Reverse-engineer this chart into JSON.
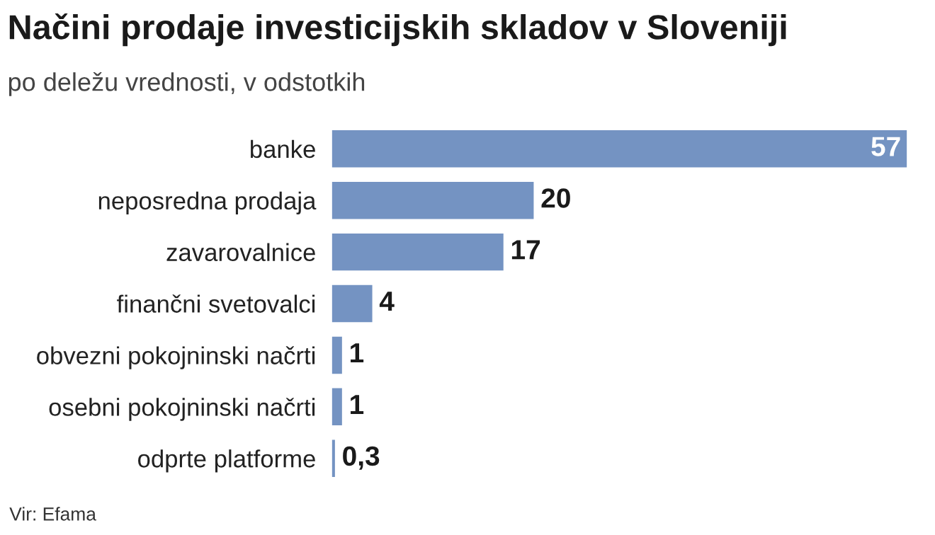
{
  "chart_data": {
    "type": "bar",
    "orientation": "horizontal",
    "title": "Načini prodaje investicijskih skladov v Sloveniji",
    "subtitle": "po deležu vrednosti, v odstotkih",
    "categories": [
      "banke",
      "neposredna prodaja",
      "zavarovalnice",
      "finančni svetovalci",
      "obvezni pokojninski načrti",
      "osebni pokojninski načrti",
      "odprte platforme"
    ],
    "values": [
      57,
      20,
      17,
      4,
      1,
      1,
      0.3
    ],
    "value_labels": [
      "57",
      "20",
      "17",
      "4",
      "1",
      "1",
      "0,3"
    ],
    "color": "#7493c2",
    "tick_labels": "y",
    "grid": false,
    "legend": false,
    "annotations": [
      "Vir: Efama"
    ]
  }
}
